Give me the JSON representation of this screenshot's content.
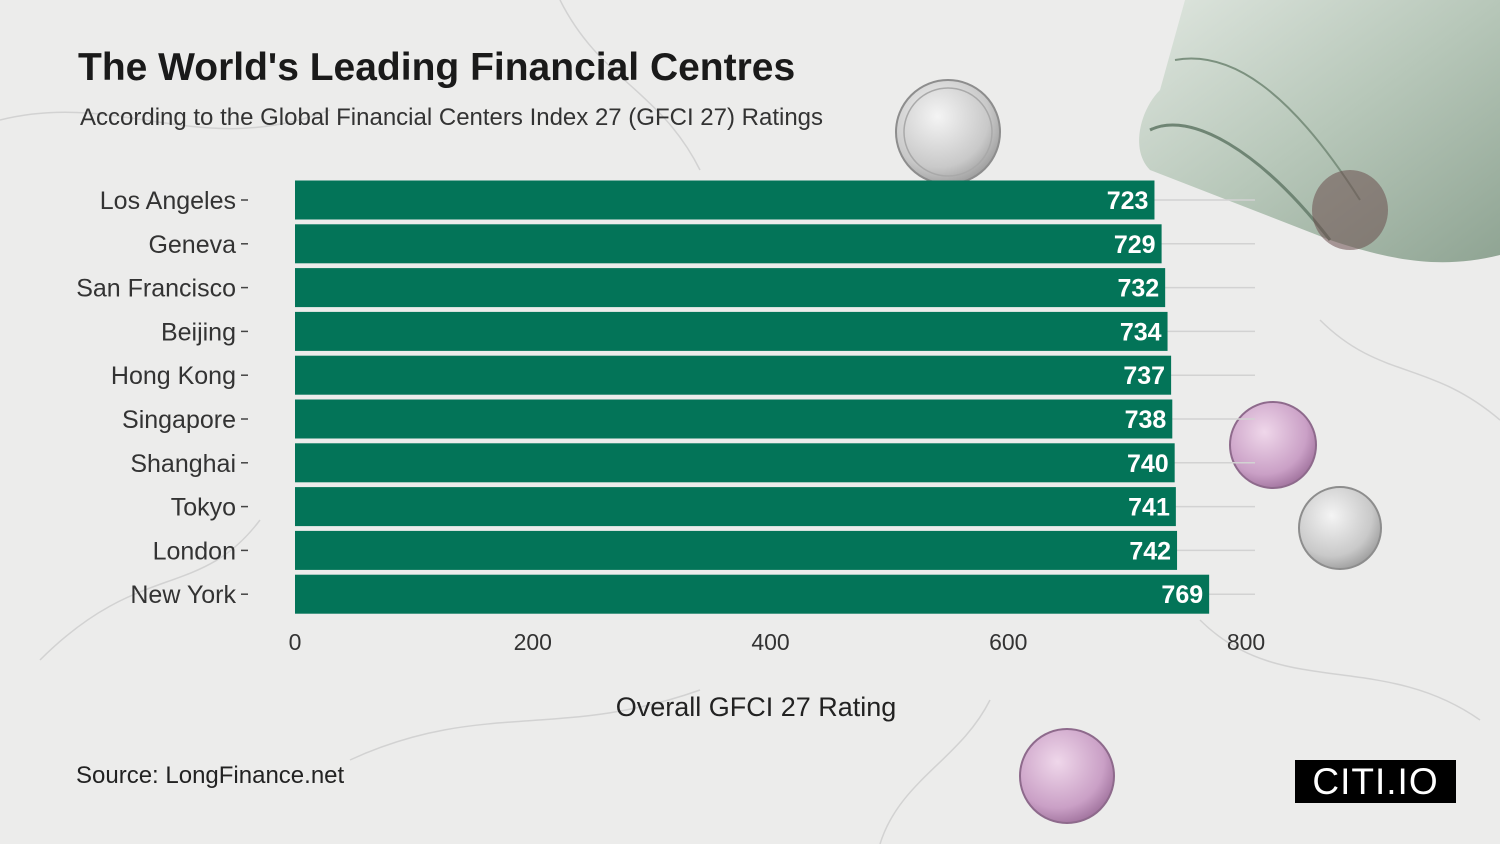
{
  "title": "The World's Leading Financial Centres",
  "subtitle": "According to the Global Financial Centers Index 27 (GFCI 27) Ratings",
  "source": "Source: LongFinance.net",
  "brand": "CITI.IO",
  "colors": {
    "bar": "#037458",
    "bar_label": "#ffffff",
    "text": "#222222",
    "grid": "#d2d2d2"
  },
  "chart_data": {
    "type": "bar",
    "orientation": "horizontal",
    "categories": [
      "Los Angeles",
      "Geneva",
      "San Francisco",
      "Beijing",
      "Hong Kong",
      "Singapore",
      "Shanghai",
      "Tokyo",
      "London",
      "New York"
    ],
    "values": [
      723,
      729,
      732,
      734,
      737,
      738,
      740,
      741,
      742,
      769
    ],
    "title": "The World's Leading Financial Centres",
    "subtitle": "According to the Global Financial Centers Index 27 (GFCI 27) Ratings",
    "xlabel": "Overall GFCI 27 Rating",
    "ylabel": "",
    "xlim": [
      0,
      800
    ],
    "xticks": [
      0,
      200,
      400,
      600,
      800
    ],
    "data_labels": true,
    "grid": "vertical-none, horizontal-lines",
    "legend": "none"
  }
}
